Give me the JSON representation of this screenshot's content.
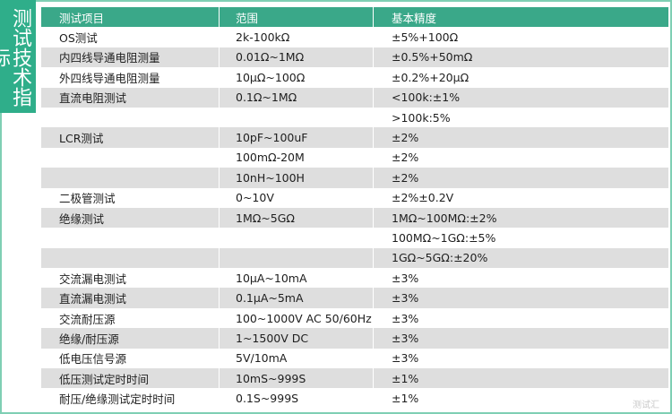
{
  "side_title": "测试技术指标",
  "headers": [
    "测试项目",
    "范围",
    "基本精度"
  ],
  "rows": [
    [
      "OS测试",
      "2k-100kΩ",
      "±5%+100Ω"
    ],
    [
      "内四线导通电阻测量",
      "0.01Ω~1MΩ",
      "±0.5%+50mΩ"
    ],
    [
      "外四线导通电阻测量",
      "10μΩ~100Ω",
      "±0.2%+20μΩ"
    ],
    [
      "直流电阻测试",
      "0.1Ω~1MΩ",
      "<100k:±1%"
    ],
    [
      "",
      "",
      ">100k:5%"
    ],
    [
      "LCR测试",
      "10pF~100uF",
      "±2%"
    ],
    [
      "",
      "100mΩ-20M",
      "±2%"
    ],
    [
      "",
      "10nH~100H",
      "±2%"
    ],
    [
      "二极管测试",
      "0~10V",
      "±2%±0.2V"
    ],
    [
      "绝缘测试",
      "1MΩ~5GΩ",
      "1MΩ~100MΩ:±2%"
    ],
    [
      "",
      "",
      "100MΩ~1GΩ:±5%"
    ],
    [
      "",
      "",
      "1GΩ~5GΩ:±20%"
    ],
    [
      "交流漏电测试",
      "10μA~10mA",
      "±3%"
    ],
    [
      "直流漏电测试",
      "0.1μA~5mA",
      "±3%"
    ],
    [
      "交流耐压源",
      "100~1000V AC 50/60Hz",
      "±3%"
    ],
    [
      "绝缘/耐压源",
      "1~1500V DC",
      "±3%"
    ],
    [
      "低电压信号源",
      "5V/10mA",
      "±3%"
    ],
    [
      "低压测试定时时间",
      "10mS~999S",
      "±1%"
    ],
    [
      "耐压/绝缘测试定时时间",
      "0.1S~999S",
      "±1%"
    ]
  ],
  "watermark": "测试汇",
  "colors": {
    "header_bg": "#3aa889",
    "side_bg": "#2fae8a",
    "border": "#7fcfb4",
    "stripe": "#dedede"
  }
}
